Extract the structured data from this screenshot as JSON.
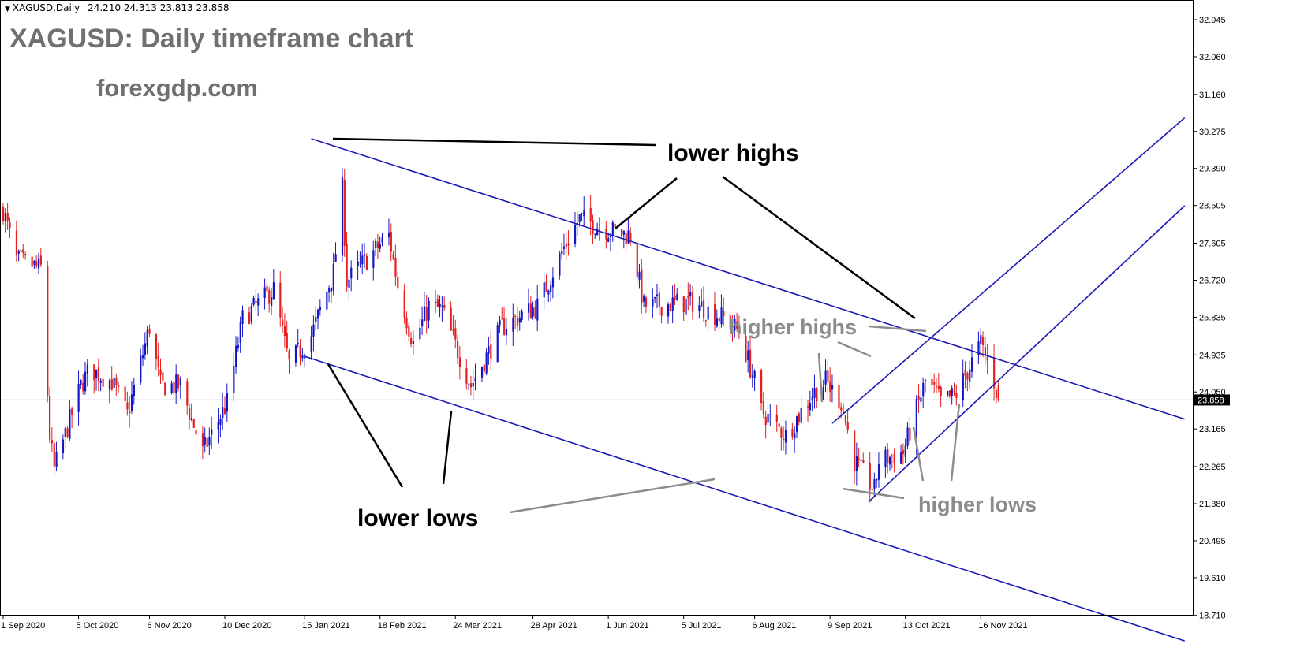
{
  "header": {
    "symbol": "XAGUSD,Daily",
    "ohlc": "24.210 24.313 23.813 23.858"
  },
  "overlay": {
    "title": "XAGUSD: Daily timeframe chart",
    "website": "forexgdp.com"
  },
  "annotations": {
    "lower_highs": "lower highs",
    "lower_lows": "lower lows",
    "higher_highs": "higher highs",
    "higher_lows": "higher lows"
  },
  "colors": {
    "bull": "#1515c8",
    "bear": "#e51e1e",
    "channel": "#1a1ab4",
    "black_line": "#000000",
    "grey_text": "#8c8c8c",
    "price_line": "#7f7fbf"
  },
  "chart_data": {
    "type": "candlestick",
    "symbol": "XAGUSD",
    "timeframe": "Daily",
    "current_price": "23.858",
    "y_ticks": [
      "32.945",
      "32.060",
      "31.160",
      "30.275",
      "29.390",
      "28.505",
      "27.605",
      "26.720",
      "25.835",
      "24.935",
      "24.050",
      "23.165",
      "22.265",
      "21.380",
      "20.495",
      "19.610",
      "18.710"
    ],
    "x_ticks": [
      "1 Sep 2020",
      "5 Oct 2020",
      "6 Nov 2020",
      "10 Dec 2020",
      "15 Jan 2021",
      "18 Feb 2021",
      "24 Mar 2021",
      "28 Apr 2021",
      "1 Jun 2021",
      "5 Jul 2021",
      "6 Aug 2021",
      "9 Sep 2021",
      "13 Oct 2021",
      "16 Nov 2021"
    ],
    "anchors": [
      [
        "1 Sep 2020",
        28.4
      ],
      [
        "7 Sep 2020",
        27.2
      ],
      [
        "18 Sep 2020",
        27.0
      ],
      [
        "22 Sep 2020",
        23.0
      ],
      [
        "24 Sep 2020",
        22.2
      ],
      [
        "6 Oct 2020",
        24.2
      ],
      [
        "10 Oct 2020",
        24.6
      ],
      [
        "20 Oct 2020",
        24.3
      ],
      [
        "27 Oct 2020",
        23.5
      ],
      [
        "6 Nov 2020",
        25.6
      ],
      [
        "11 Nov 2020",
        24.2
      ],
      [
        "20 Nov 2020",
        24.2
      ],
      [
        "30 Nov 2020",
        22.6
      ],
      [
        "11 Dec 2020",
        23.8
      ],
      [
        "18 Dec 2020",
        25.8
      ],
      [
        "1 Jan 2021",
        26.5
      ],
      [
        "8 Jan 2021",
        24.7
      ],
      [
        "18 Jan 2021",
        25.4
      ],
      [
        "28 Jan 2021",
        26.9
      ],
      [
        "1 Feb 2021",
        28.9
      ],
      [
        "3 Feb 2021",
        26.7
      ],
      [
        "22 Feb 2021",
        27.8
      ],
      [
        "26 Feb 2021",
        26.6
      ],
      [
        "5 Mar 2021",
        25.2
      ],
      [
        "12 Mar 2021",
        26.1
      ],
      [
        "18 Mar 2021",
        26.0
      ],
      [
        "31 Mar 2021",
        24.2
      ],
      [
        "14 Apr 2021",
        25.6
      ],
      [
        "30 Apr 2021",
        26.1
      ],
      [
        "12 May 2021",
        27.5
      ],
      [
        "19 May 2021",
        28.2
      ],
      [
        "2 Jun 2021",
        27.9
      ],
      [
        "11 Jun 2021",
        27.8
      ],
      [
        "17 Jun 2021",
        26.1
      ],
      [
        "9 Jul 2021",
        26.2
      ],
      [
        "23 Jul 2021",
        25.8
      ],
      [
        "30 Jul 2021",
        25.5
      ],
      [
        "6 Aug 2021",
        24.3
      ],
      [
        "9 Aug 2021",
        23.6
      ],
      [
        "20 Aug 2021",
        23.0
      ],
      [
        "1 Sep 2021",
        24.0
      ],
      [
        "7 Sep 2021",
        24.3
      ],
      [
        "14 Sep 2021",
        23.8
      ],
      [
        "20 Sep 2021",
        22.4
      ],
      [
        "29 Sep 2021",
        21.7
      ],
      [
        "1 Oct 2021",
        22.4
      ],
      [
        "12 Oct 2021",
        22.6
      ],
      [
        "22 Oct 2021",
        24.3
      ],
      [
        "27 Oct 2021",
        24.0
      ],
      [
        "29 Oct 2021",
        23.8
      ],
      [
        "5 Nov 2021",
        24.0
      ],
      [
        "16 Nov 2021",
        25.2
      ],
      [
        "22 Nov 2021",
        24.3
      ],
      [
        "24 Nov 2021",
        23.86
      ]
    ],
    "trend_lines": [
      {
        "name": "upper falling",
        "points": [
          [
            "18 Jan 2021",
            30.1
          ],
          [
            "16 Feb 2022",
            23.4
          ]
        ]
      },
      {
        "name": "lower falling",
        "points": [
          [
            "15 Jan 2021",
            24.9
          ],
          [
            "16 Feb 2022",
            18.1
          ]
        ]
      },
      {
        "name": "rising channel top",
        "points": [
          [
            "10 Sep 2021",
            23.3
          ],
          [
            "16 Feb 2022",
            30.6
          ]
        ]
      },
      {
        "name": "rising channel bottom",
        "points": [
          [
            "27 Sep 2021",
            21.45
          ],
          [
            "16 Feb 2022",
            28.5
          ]
        ]
      }
    ],
    "xlabel": "",
    "ylabel": ""
  }
}
